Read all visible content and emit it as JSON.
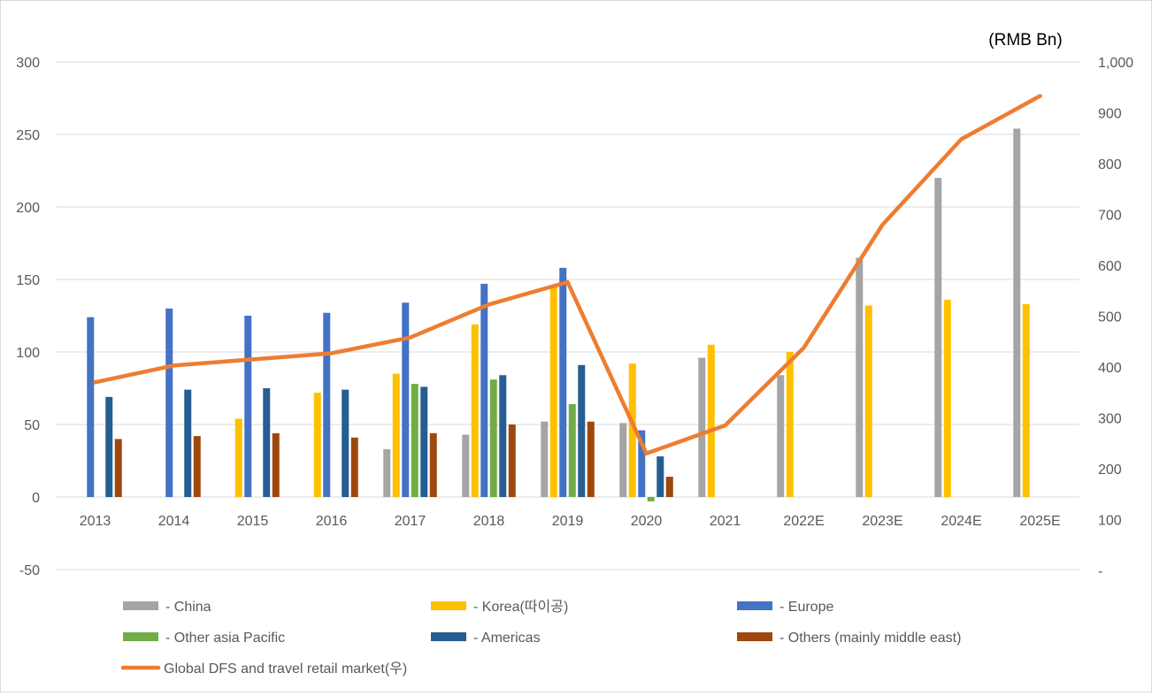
{
  "chart_data": {
    "type": "bar",
    "unit_label": "(RMB Bn)",
    "categories": [
      "2013",
      "2014",
      "2015",
      "2016",
      "2017",
      "2018",
      "2019",
      "2020",
      "2021",
      "2022E",
      "2023E",
      "2024E",
      "2025E"
    ],
    "left_axis": {
      "min": -50,
      "max": 300,
      "ticks": [
        "300",
        "250",
        "200",
        "150",
        "100",
        "50",
        "0",
        "-50"
      ],
      "tick_values": [
        300,
        250,
        200,
        150,
        100,
        50,
        0,
        -50
      ]
    },
    "right_axis": {
      "min": 0,
      "max": 1000,
      "ticks": [
        "1,000",
        "900",
        "800",
        "700",
        "600",
        "500",
        "400",
        "300",
        "200",
        "100",
        "-"
      ],
      "tick_values": [
        1000,
        900,
        800,
        700,
        600,
        500,
        400,
        300,
        200,
        100,
        0
      ]
    },
    "gridlines": true,
    "series": [
      {
        "name": "- China",
        "color": "#a5a5a5",
        "values": [
          null,
          null,
          null,
          null,
          33,
          43,
          52,
          51,
          96,
          84,
          165,
          220,
          254
        ]
      },
      {
        "name": "- Korea(따이공)",
        "color": "#ffc000",
        "values": [
          null,
          null,
          54,
          72,
          85,
          119,
          145,
          92,
          105,
          100,
          132,
          136,
          133
        ]
      },
      {
        "name": "- Europe",
        "color": "#4472c4",
        "values": [
          124,
          130,
          125,
          127,
          134,
          147,
          158,
          46,
          null,
          null,
          null,
          null,
          null
        ]
      },
      {
        "name": "- Other asia Pacific",
        "color": "#70ad47",
        "values": [
          null,
          null,
          null,
          null,
          78,
          81,
          64,
          -3,
          null,
          null,
          null,
          null,
          null
        ]
      },
      {
        "name": "- Americas",
        "color": "#255e91",
        "values": [
          69,
          74,
          75,
          74,
          76,
          84,
          91,
          28,
          null,
          null,
          null,
          null,
          null
        ]
      },
      {
        "name": "- Others (mainly middle east)",
        "color": "#9e480e",
        "values": [
          40,
          42,
          44,
          41,
          44,
          50,
          52,
          14,
          null,
          null,
          null,
          null,
          null
        ]
      }
    ],
    "line_series": {
      "name": "Global DFS and travel retail market(우)",
      "color": "#ed7d31",
      "axis": "right",
      "values": [
        370,
        403,
        415,
        427,
        458,
        523,
        567,
        230,
        285,
        438,
        680,
        848,
        933
      ]
    },
    "legend": {
      "placement": "bottom",
      "items": [
        "- China",
        "- Korea(따이공)",
        "- Europe",
        "- Other asia Pacific",
        "- Americas",
        "- Others (mainly middle east)",
        "Global DFS and travel retail market(우)"
      ]
    }
  }
}
